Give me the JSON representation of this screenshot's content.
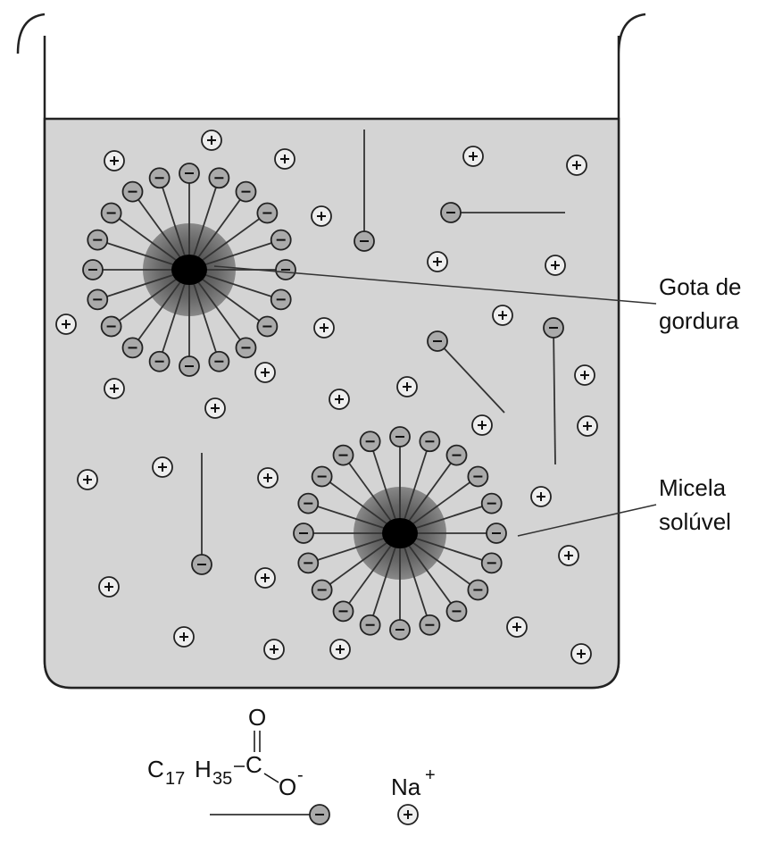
{
  "labels": {
    "fat_drop": [
      "Gota de",
      "gordura"
    ],
    "micelle": [
      "Micela",
      "solúvel"
    ]
  },
  "formula": {
    "c1": "C",
    "c1_sub": "17",
    "h": "H",
    "h_sub": "35",
    "c2": "C",
    "o_top": "O",
    "o_right": "O",
    "charge_minus": "-",
    "na": "Na",
    "charge_plus": "+"
  }
}
